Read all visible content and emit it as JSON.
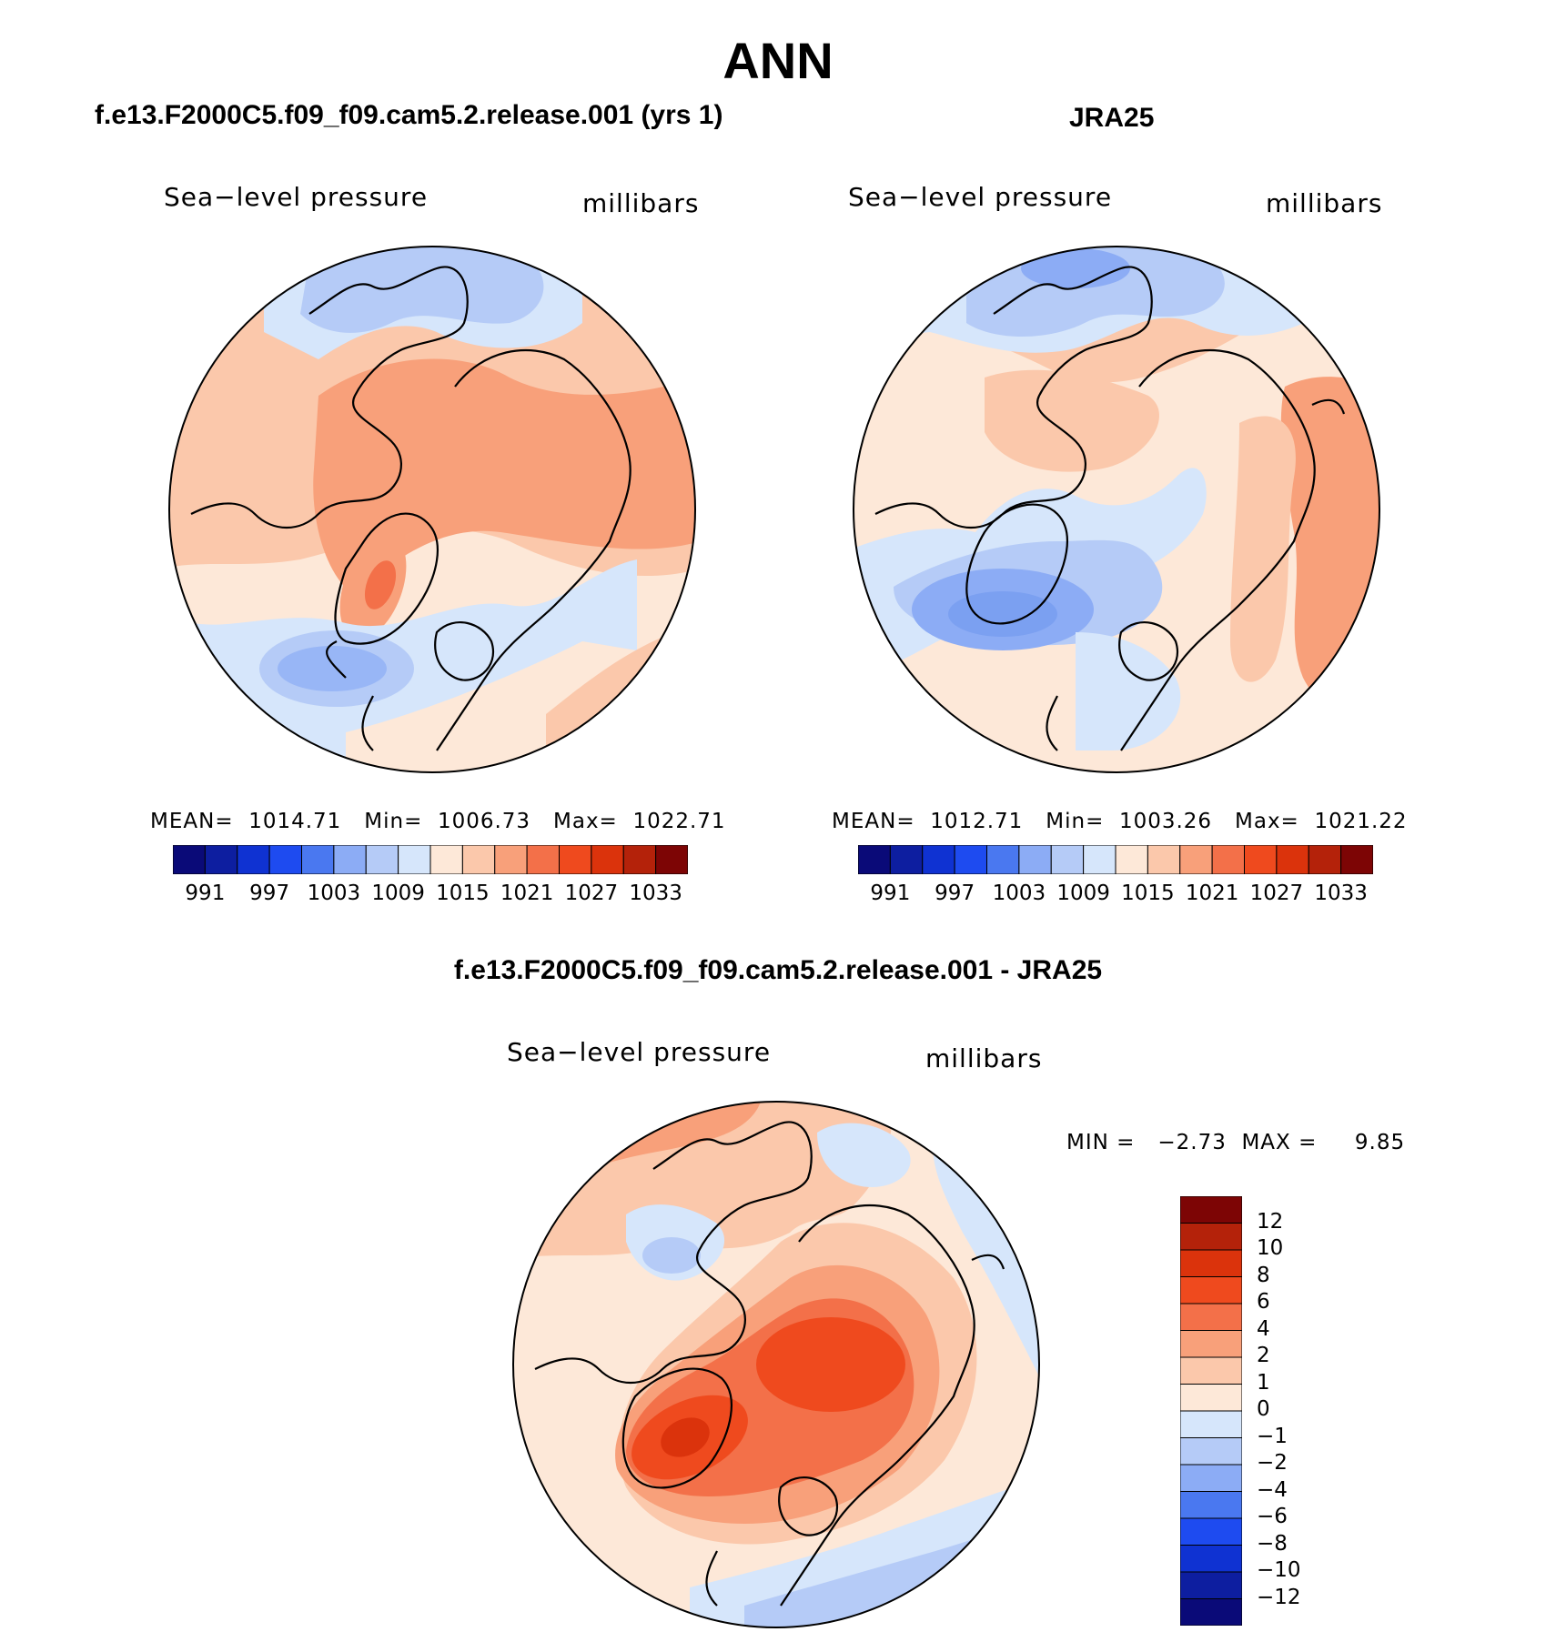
{
  "title": "ANN",
  "panels": [
    {
      "id": "model",
      "case_title": "f.e13.F2000C5.f09_f09.cam5.2.release.001 (yrs 1)",
      "variable": "Sea−level pressure",
      "units": "millibars",
      "stats": "MEAN=  1014.71   Min=  1006.73   Max=  1022.71"
    },
    {
      "id": "obs",
      "case_title": "JRA25",
      "variable": "Sea−level pressure",
      "units": "millibars",
      "stats": "MEAN=  1012.71   Min=  1003.26   Max=  1021.22"
    }
  ],
  "field_colorbar": {
    "colors": [
      "#0a0a78",
      "#0d1ea0",
      "#0f32d2",
      "#1e4bf0",
      "#4a78f0",
      "#8cacf5",
      "#b5cbf7",
      "#d6e6fb",
      "#fde8d8",
      "#fbc8ab",
      "#f8a07a",
      "#f37049",
      "#ef4a1e",
      "#db330c",
      "#b4220a",
      "#7d0505"
    ],
    "tick_labels": [
      "991",
      "997",
      "1003",
      "1009",
      "1015",
      "1021",
      "1027",
      "1033"
    ]
  },
  "difference": {
    "case_title": "f.e13.F2000C5.f09_f09.cam5.2.release.001 - JRA25",
    "variable": "Sea−level pressure",
    "units": "millibars",
    "minmax": "MIN =   −2.73  MAX =     9.85",
    "colorbar": {
      "colors_top_to_bottom": [
        "#7d0505",
        "#b4220a",
        "#db330c",
        "#ef4a1e",
        "#f37049",
        "#f8a07a",
        "#fbc8ab",
        "#fde8d8",
        "#d6e6fb",
        "#b5cbf7",
        "#8cacf5",
        "#4a78f0",
        "#1e4bf0",
        "#0f32d2",
        "#0d1ea0",
        "#0a0a78"
      ],
      "tick_labels_top_to_bottom": [
        "12",
        "10",
        "8",
        "6",
        "4",
        "2",
        "1",
        "0",
        "−1",
        "−2",
        "−4",
        "−6",
        "−8",
        "−10",
        "−12"
      ]
    }
  }
}
